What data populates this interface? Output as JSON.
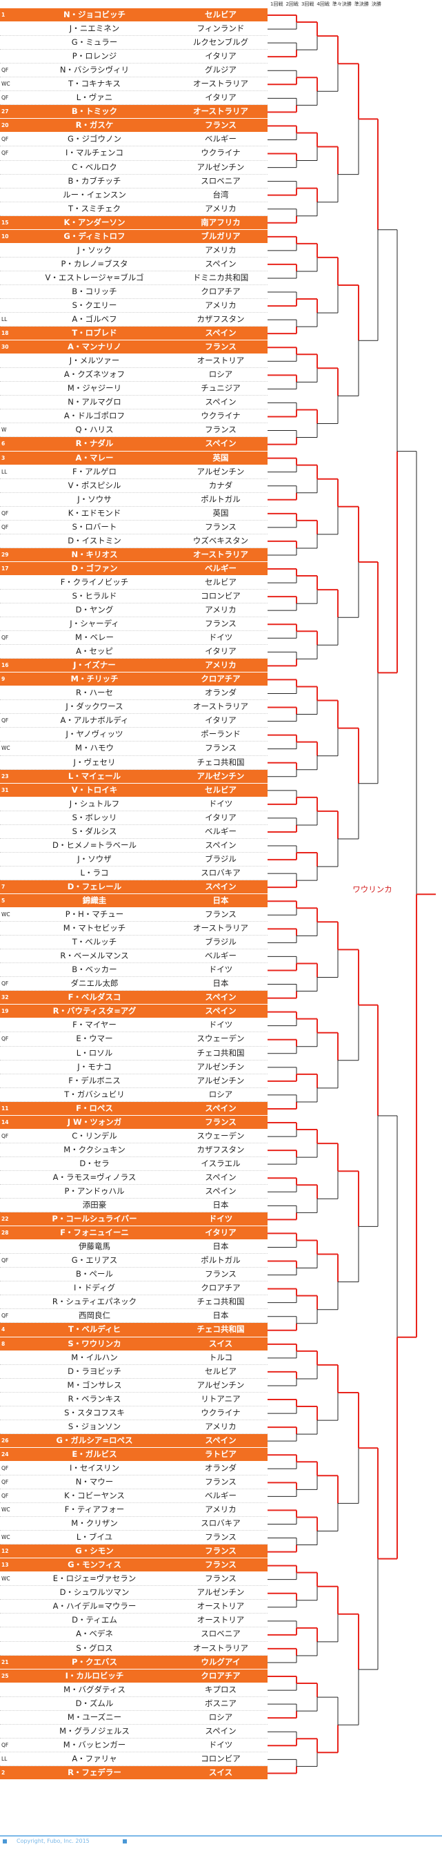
{
  "rounds": [
    "1回戦",
    "2回戦",
    "3回戦",
    "4回戦",
    "準々決勝",
    "準決勝",
    "決勝"
  ],
  "players": [
    {
      "tag": "1",
      "name": "N・ジョコビッチ",
      "country": "セルビア",
      "seed": true
    },
    {
      "tag": "",
      "name": "J・ニエミネン",
      "country": "フィンランド",
      "seed": false
    },
    {
      "tag": "",
      "name": "G・ミュラー",
      "country": "ルクセンブルグ",
      "seed": false
    },
    {
      "tag": "",
      "name": "P・ロレンジ",
      "country": "イタリア",
      "seed": false
    },
    {
      "tag": "QF",
      "name": "N・バシラシヴィリ",
      "country": "グルジア",
      "seed": false
    },
    {
      "tag": "WC",
      "name": "T・コキナキス",
      "country": "オーストラリア",
      "seed": false
    },
    {
      "tag": "QF",
      "name": "L・ヴァニ",
      "country": "イタリア",
      "seed": false
    },
    {
      "tag": "27",
      "name": "B・トミック",
      "country": "オーストラリア",
      "seed": true
    },
    {
      "tag": "20",
      "name": "R・ガスケ",
      "country": "フランス",
      "seed": true
    },
    {
      "tag": "QF",
      "name": "G・ジゴウノン",
      "country": "ベルギー",
      "seed": false
    },
    {
      "tag": "QF",
      "name": "I・マルチェンコ",
      "country": "ウクライナ",
      "seed": false
    },
    {
      "tag": "",
      "name": "C・ベルロク",
      "country": "アルゼンチン",
      "seed": false
    },
    {
      "tag": "",
      "name": "B・カブチッチ",
      "country": "スロベニア",
      "seed": false
    },
    {
      "tag": "",
      "name": "ルー・イェンスン",
      "country": "台湾",
      "seed": false
    },
    {
      "tag": "",
      "name": "T・スミチェク",
      "country": "アメリカ",
      "seed": false
    },
    {
      "tag": "15",
      "name": "K・アンダーソン",
      "country": "南アフリカ",
      "seed": true
    },
    {
      "tag": "10",
      "name": "G・ディミトロフ",
      "country": "ブルガリア",
      "seed": true
    },
    {
      "tag": "",
      "name": "J・ソック",
      "country": "アメリカ",
      "seed": false
    },
    {
      "tag": "",
      "name": "P・カレノ=ブスタ",
      "country": "スペイン",
      "seed": false
    },
    {
      "tag": "",
      "name": "V・エストレージャ=ブルゴ",
      "country": "ドミニカ共和国",
      "seed": false
    },
    {
      "tag": "",
      "name": "B・コリッチ",
      "country": "クロアチア",
      "seed": false
    },
    {
      "tag": "",
      "name": "S・クエリー",
      "country": "アメリカ",
      "seed": false
    },
    {
      "tag": "LL",
      "name": "A・ゴルベフ",
      "country": "カザフスタン",
      "seed": false
    },
    {
      "tag": "18",
      "name": "T・ロブレド",
      "country": "スペイン",
      "seed": true
    },
    {
      "tag": "30",
      "name": "A・マンナリノ",
      "country": "フランス",
      "seed": true
    },
    {
      "tag": "",
      "name": "J・メルツァー",
      "country": "オーストリア",
      "seed": false
    },
    {
      "tag": "",
      "name": "A・クズネツォフ",
      "country": "ロシア",
      "seed": false
    },
    {
      "tag": "",
      "name": "M・ジャジーリ",
      "country": "チュニジア",
      "seed": false
    },
    {
      "tag": "",
      "name": "N・アルマグロ",
      "country": "スペイン",
      "seed": false
    },
    {
      "tag": "",
      "name": "A・ドルゴポロフ",
      "country": "ウクライナ",
      "seed": false
    },
    {
      "tag": "W",
      "name": "Q・ハリス",
      "country": "フランス",
      "seed": false
    },
    {
      "tag": "6",
      "name": "R・ナダル",
      "country": "スペイン",
      "seed": true
    },
    {
      "tag": "3",
      "name": "A・マレー",
      "country": "英国",
      "seed": true
    },
    {
      "tag": "LL",
      "name": "F・アルゲロ",
      "country": "アルゼンチン",
      "seed": false
    },
    {
      "tag": "",
      "name": "V・ポスピシル",
      "country": "カナダ",
      "seed": false
    },
    {
      "tag": "",
      "name": "J・ソウサ",
      "country": "ポルトガル",
      "seed": false
    },
    {
      "tag": "QF",
      "name": "K・エドモンド",
      "country": "英国",
      "seed": false
    },
    {
      "tag": "QF",
      "name": "S・ロバート",
      "country": "フランス",
      "seed": false
    },
    {
      "tag": "",
      "name": "D・イストミン",
      "country": "ウズベキスタン",
      "seed": false
    },
    {
      "tag": "29",
      "name": "N・キリオス",
      "country": "オーストラリア",
      "seed": true
    },
    {
      "tag": "17",
      "name": "D・ゴファン",
      "country": "ベルギー",
      "seed": true
    },
    {
      "tag": "",
      "name": "F・クライノビッチ",
      "country": "セルビア",
      "seed": false
    },
    {
      "tag": "",
      "name": "S・ヒラルド",
      "country": "コロンビア",
      "seed": false
    },
    {
      "tag": "",
      "name": "D・ヤング",
      "country": "アメリカ",
      "seed": false
    },
    {
      "tag": "",
      "name": "J・シャーディ",
      "country": "フランス",
      "seed": false
    },
    {
      "tag": "QF",
      "name": "M・ベレー",
      "country": "ドイツ",
      "seed": false
    },
    {
      "tag": "",
      "name": "A・セッピ",
      "country": "イタリア",
      "seed": false
    },
    {
      "tag": "16",
      "name": "J・イズナー",
      "country": "アメリカ",
      "seed": true
    },
    {
      "tag": "9",
      "name": "M・チリッチ",
      "country": "クロアチア",
      "seed": true
    },
    {
      "tag": "",
      "name": "R・ハーセ",
      "country": "オランダ",
      "seed": false
    },
    {
      "tag": "",
      "name": "J・ダックワース",
      "country": "オーストラリア",
      "seed": false
    },
    {
      "tag": "QF",
      "name": "A・アルナボルディ",
      "country": "イタリア",
      "seed": false
    },
    {
      "tag": "",
      "name": "J・ヤノヴィッツ",
      "country": "ポーランド",
      "seed": false
    },
    {
      "tag": "WC",
      "name": "M・ハモウ",
      "country": "フランス",
      "seed": false
    },
    {
      "tag": "",
      "name": "J・ヴェセリ",
      "country": "チェコ共和国",
      "seed": false
    },
    {
      "tag": "23",
      "name": "L・マイェール",
      "country": "アルゼンチン",
      "seed": true
    },
    {
      "tag": "31",
      "name": "V・トロイキ",
      "country": "セルビア",
      "seed": true
    },
    {
      "tag": "",
      "name": "J・シュトルフ",
      "country": "ドイツ",
      "seed": false
    },
    {
      "tag": "",
      "name": "S・ボレッリ",
      "country": "イタリア",
      "seed": false
    },
    {
      "tag": "",
      "name": "S・ダルシス",
      "country": "ベルギー",
      "seed": false
    },
    {
      "tag": "",
      "name": "D・ヒメノ=トラベール",
      "country": "スペイン",
      "seed": false
    },
    {
      "tag": "",
      "name": "J・ソウザ",
      "country": "ブラジル",
      "seed": false
    },
    {
      "tag": "",
      "name": "L・ラコ",
      "country": "スロバキア",
      "seed": false
    },
    {
      "tag": "7",
      "name": "D・フェレール",
      "country": "スペイン",
      "seed": true
    },
    {
      "tag": "5",
      "name": "錦織圭",
      "country": "日本",
      "seed": true
    },
    {
      "tag": "WC",
      "name": "P・H・マチュー",
      "country": "フランス",
      "seed": false
    },
    {
      "tag": "",
      "name": "M・マトセビッチ",
      "country": "オーストラリア",
      "seed": false
    },
    {
      "tag": "",
      "name": "T・ベルッチ",
      "country": "ブラジル",
      "seed": false
    },
    {
      "tag": "",
      "name": "R・ベーメルマンス",
      "country": "ベルギー",
      "seed": false
    },
    {
      "tag": "",
      "name": "B・ベッカー",
      "country": "ドイツ",
      "seed": false
    },
    {
      "tag": "QF",
      "name": "ダニエル太郎",
      "country": "日本",
      "seed": false
    },
    {
      "tag": "32",
      "name": "F・ベルダスコ",
      "country": "スペイン",
      "seed": true
    },
    {
      "tag": "19",
      "name": "R・バウティスタ=アグ",
      "country": "スペイン",
      "seed": true
    },
    {
      "tag": "",
      "name": "F・マイヤー",
      "country": "ドイツ",
      "seed": false
    },
    {
      "tag": "QF",
      "name": "E・ウマー",
      "country": "スウェーデン",
      "seed": false
    },
    {
      "tag": "",
      "name": "L・ロソル",
      "country": "チェコ共和国",
      "seed": false
    },
    {
      "tag": "",
      "name": "J・モナコ",
      "country": "アルゼンチン",
      "seed": false
    },
    {
      "tag": "",
      "name": "F・デルボニス",
      "country": "アルゼンチン",
      "seed": false
    },
    {
      "tag": "",
      "name": "T・ガバシュビリ",
      "country": "ロシア",
      "seed": false
    },
    {
      "tag": "11",
      "name": "F・ロペス",
      "country": "スペイン",
      "seed": true
    },
    {
      "tag": "14",
      "name": "J W・ツォンガ",
      "country": "フランス",
      "seed": true
    },
    {
      "tag": "QF",
      "name": "C・リンデル",
      "country": "スウェーデン",
      "seed": false
    },
    {
      "tag": "",
      "name": "M・ククシュキン",
      "country": "カザフスタン",
      "seed": false
    },
    {
      "tag": "",
      "name": "D・セラ",
      "country": "イスラエル",
      "seed": false
    },
    {
      "tag": "",
      "name": "A・ラモス=ヴィノラス",
      "country": "スペイン",
      "seed": false
    },
    {
      "tag": "",
      "name": "P・アンドゥハル",
      "country": "スペイン",
      "seed": false
    },
    {
      "tag": "",
      "name": "添田豪",
      "country": "日本",
      "seed": false
    },
    {
      "tag": "22",
      "name": "P・コールシュライバー",
      "country": "ドイツ",
      "seed": true
    },
    {
      "tag": "28",
      "name": "F・フォニュイーニ",
      "country": "イタリア",
      "seed": true
    },
    {
      "tag": "",
      "name": "伊藤竜馬",
      "country": "日本",
      "seed": false
    },
    {
      "tag": "QF",
      "name": "G・エリアス",
      "country": "ポルトガル",
      "seed": false
    },
    {
      "tag": "",
      "name": "B・ペール",
      "country": "フランス",
      "seed": false
    },
    {
      "tag": "",
      "name": "I・ドディグ",
      "country": "クロアチア",
      "seed": false
    },
    {
      "tag": "",
      "name": "R・シュティエパネック",
      "country": "チェコ共和国",
      "seed": false
    },
    {
      "tag": "QF",
      "name": "西岡良仁",
      "country": "日本",
      "seed": false
    },
    {
      "tag": "4",
      "name": "T・ベルディヒ",
      "country": "チェコ共和国",
      "seed": true
    },
    {
      "tag": "8",
      "name": "S・ワウリンカ",
      "country": "スイス",
      "seed": true
    },
    {
      "tag": "",
      "name": "M・イルハン",
      "country": "トルコ",
      "seed": false
    },
    {
      "tag": "",
      "name": "D・ラヨビッチ",
      "country": "セルビア",
      "seed": false
    },
    {
      "tag": "",
      "name": "M・ゴンサレス",
      "country": "アルゼンチン",
      "seed": false
    },
    {
      "tag": "",
      "name": "R・ベランキス",
      "country": "リトアニア",
      "seed": false
    },
    {
      "tag": "",
      "name": "S・スタコフスキ",
      "country": "ウクライナ",
      "seed": false
    },
    {
      "tag": "",
      "name": "S・ジョンソン",
      "country": "アメリカ",
      "seed": false
    },
    {
      "tag": "26",
      "name": "G・ガルシア=ロペス",
      "country": "スペイン",
      "seed": true
    },
    {
      "tag": "24",
      "name": "E・ガルビス",
      "country": "ラトビア",
      "seed": true
    },
    {
      "tag": "QF",
      "name": "I・セイスリン",
      "country": "オランダ",
      "seed": false
    },
    {
      "tag": "QF",
      "name": "N・マウー",
      "country": "フランス",
      "seed": false
    },
    {
      "tag": "QF",
      "name": "K・コビーヤンス",
      "country": "ベルギー",
      "seed": false
    },
    {
      "tag": "WC",
      "name": "F・ティアフォー",
      "country": "アメリカ",
      "seed": false
    },
    {
      "tag": "",
      "name": "M・クリザン",
      "country": "スロバキア",
      "seed": false
    },
    {
      "tag": "WC",
      "name": "L・ブイユ",
      "country": "フランス",
      "seed": false
    },
    {
      "tag": "12",
      "name": "G・シモン",
      "country": "フランス",
      "seed": true
    },
    {
      "tag": "13",
      "name": "G・モンフィス",
      "country": "フランス",
      "seed": true
    },
    {
      "tag": "WC",
      "name": "E・ロジェ=ヴァセラン",
      "country": "フランス",
      "seed": false
    },
    {
      "tag": "",
      "name": "D・シュワルツマン",
      "country": "アルゼンチン",
      "seed": false
    },
    {
      "tag": "",
      "name": "A・ハイデル=マウラー",
      "country": "オーストリア",
      "seed": false
    },
    {
      "tag": "",
      "name": "D・ティエム",
      "country": "オーストリア",
      "seed": false
    },
    {
      "tag": "",
      "name": "A・ベデネ",
      "country": "スロベニア",
      "seed": false
    },
    {
      "tag": "",
      "name": "S・グロス",
      "country": "オーストラリア",
      "seed": false
    },
    {
      "tag": "21",
      "name": "P・クエバス",
      "country": "ウルグアイ",
      "seed": true
    },
    {
      "tag": "25",
      "name": "I・カルロビッチ",
      "country": "クロアチア",
      "seed": true
    },
    {
      "tag": "",
      "name": "M・バグダティス",
      "country": "キプロス",
      "seed": false
    },
    {
      "tag": "",
      "name": "D・ズムル",
      "country": "ボスニア",
      "seed": false
    },
    {
      "tag": "",
      "name": "M・ユーズニー",
      "country": "ロシア",
      "seed": false
    },
    {
      "tag": "",
      "name": "M・グラノジェルス",
      "country": "スペイン",
      "seed": false
    },
    {
      "tag": "QF",
      "name": "M・バッヒンガー",
      "country": "ドイツ",
      "seed": false
    },
    {
      "tag": "LL",
      "name": "A・ファリャ",
      "country": "コロンビア",
      "seed": false
    },
    {
      "tag": "2",
      "name": "R・フェデラー",
      "country": "スイス",
      "seed": true
    }
  ],
  "results": [
    [
      0,
      3,
      5,
      7,
      8,
      10,
      13,
      15,
      16,
      18,
      21,
      23,
      24,
      26,
      29,
      31,
      32,
      35,
      36,
      38,
      40,
      42,
      44,
      47,
      48,
      50,
      52,
      54,
      57,
      59,
      61,
      63,
      64,
      66,
      69,
      71,
      72,
      74,
      77,
      79,
      80,
      82,
      84,
      87,
      88,
      90,
      92,
      95,
      96,
      98,
      100,
      102,
      104,
      106,
      108,
      111,
      112,
      114,
      117,
      118,
      120,
      123,
      125,
      127
    ],
    [
      0,
      5,
      8,
      13,
      16,
      21,
      24,
      29,
      32,
      36,
      40,
      44,
      48,
      52,
      57,
      61,
      64,
      69,
      72,
      77,
      80,
      84,
      88,
      92,
      96,
      100,
      104,
      108,
      112,
      117,
      120,
      125
    ],
    [
      0,
      8,
      16,
      24,
      32,
      40,
      48,
      57,
      64,
      72,
      80,
      88,
      96,
      104,
      112,
      125
    ],
    [
      0,
      16,
      32,
      48,
      64,
      80,
      96,
      112
    ],
    [
      0,
      32,
      64,
      96
    ],
    [
      32,
      96
    ],
    [
      96
    ]
  ],
  "winner_label": "ワウリンカ",
  "footer": {
    "copyright": "Copyright, Fubo, Inc. 2015"
  },
  "colors": {
    "seed_row": "#f26f21",
    "winner_path": "#e8241c",
    "loser_line": "#222222",
    "footer_accent": "#4a98d6"
  }
}
